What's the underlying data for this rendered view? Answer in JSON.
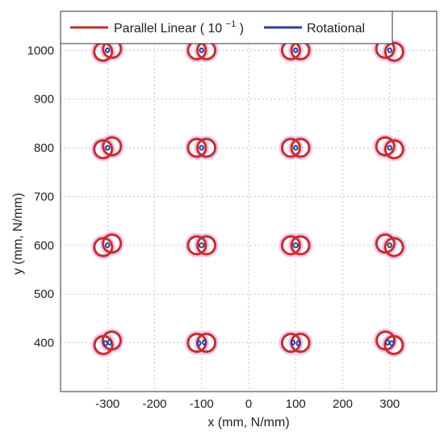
{
  "chart_data": {
    "type": "scatter",
    "title": "",
    "xlabel": "x (mm, N/mm)",
    "ylabel": "y (mm, N/mm)",
    "xlim": [
      -400,
      400
    ],
    "ylim": [
      300,
      1080
    ],
    "xticks": [
      -300,
      -200,
      -100,
      0,
      100,
      200,
      300
    ],
    "yticks": [
      400,
      500,
      600,
      700,
      800,
      900,
      1000
    ],
    "grid": true,
    "grid_style": "dotted",
    "legend_position": "top",
    "legend": [
      {
        "label_text": "Parallel Linear",
        "label_base": "10",
        "label_exp": "−1",
        "color": "#c0312e"
      },
      {
        "label": "Rotational",
        "color": "#2d3f9e"
      }
    ],
    "colors": {
      "parallel_linear": "#c0312e",
      "parallel_linear_shadow": "#f4c6ee",
      "rotational": "#2d3f9e",
      "grid": "#bbbbbb",
      "axes": "#333333"
    },
    "series": [
      {
        "name": "Parallel Linear",
        "shape": "two-lobed loop per grid point",
        "scale_factor": 0.1,
        "lobe_offset_x": 20,
        "points": [
          {
            "x": -300,
            "y": 1000,
            "tilt_deg": -18
          },
          {
            "x": -100,
            "y": 1000,
            "tilt_deg": 0
          },
          {
            "x": 100,
            "y": 1000,
            "tilt_deg": 0
          },
          {
            "x": 300,
            "y": 1000,
            "tilt_deg": 18
          },
          {
            "x": -300,
            "y": 800,
            "tilt_deg": -18
          },
          {
            "x": -100,
            "y": 800,
            "tilt_deg": 0
          },
          {
            "x": 100,
            "y": 800,
            "tilt_deg": 0
          },
          {
            "x": 300,
            "y": 800,
            "tilt_deg": 18
          },
          {
            "x": -300,
            "y": 600,
            "tilt_deg": -22
          },
          {
            "x": -100,
            "y": 600,
            "tilt_deg": 0
          },
          {
            "x": 100,
            "y": 600,
            "tilt_deg": 0
          },
          {
            "x": 300,
            "y": 600,
            "tilt_deg": 22
          },
          {
            "x": -300,
            "y": 400,
            "tilt_deg": -28
          },
          {
            "x": -100,
            "y": 400,
            "tilt_deg": 0
          },
          {
            "x": 100,
            "y": 400,
            "tilt_deg": 0
          },
          {
            "x": 300,
            "y": 400,
            "tilt_deg": 28
          }
        ]
      },
      {
        "name": "Rotational",
        "shape": "small loop per grid point",
        "points": [
          {
            "x": -300,
            "y": 1000,
            "size": 1
          },
          {
            "x": -100,
            "y": 1000,
            "size": 1
          },
          {
            "x": 100,
            "y": 1000,
            "size": 1
          },
          {
            "x": 300,
            "y": 1000,
            "size": 1
          },
          {
            "x": -300,
            "y": 800,
            "size": 1
          },
          {
            "x": -100,
            "y": 800,
            "size": 1
          },
          {
            "x": 100,
            "y": 800,
            "size": 1
          },
          {
            "x": 300,
            "y": 800,
            "size": 1
          },
          {
            "x": -300,
            "y": 600,
            "size": 1
          },
          {
            "x": -100,
            "y": 600,
            "size": 1.3
          },
          {
            "x": 100,
            "y": 600,
            "size": 1.3
          },
          {
            "x": 300,
            "y": 600,
            "size": 1
          },
          {
            "x": -300,
            "y": 400,
            "size": 1.5
          },
          {
            "x": -100,
            "y": 400,
            "size": 2
          },
          {
            "x": 100,
            "y": 400,
            "size": 2
          },
          {
            "x": 300,
            "y": 400,
            "size": 1.5
          }
        ]
      }
    ]
  }
}
